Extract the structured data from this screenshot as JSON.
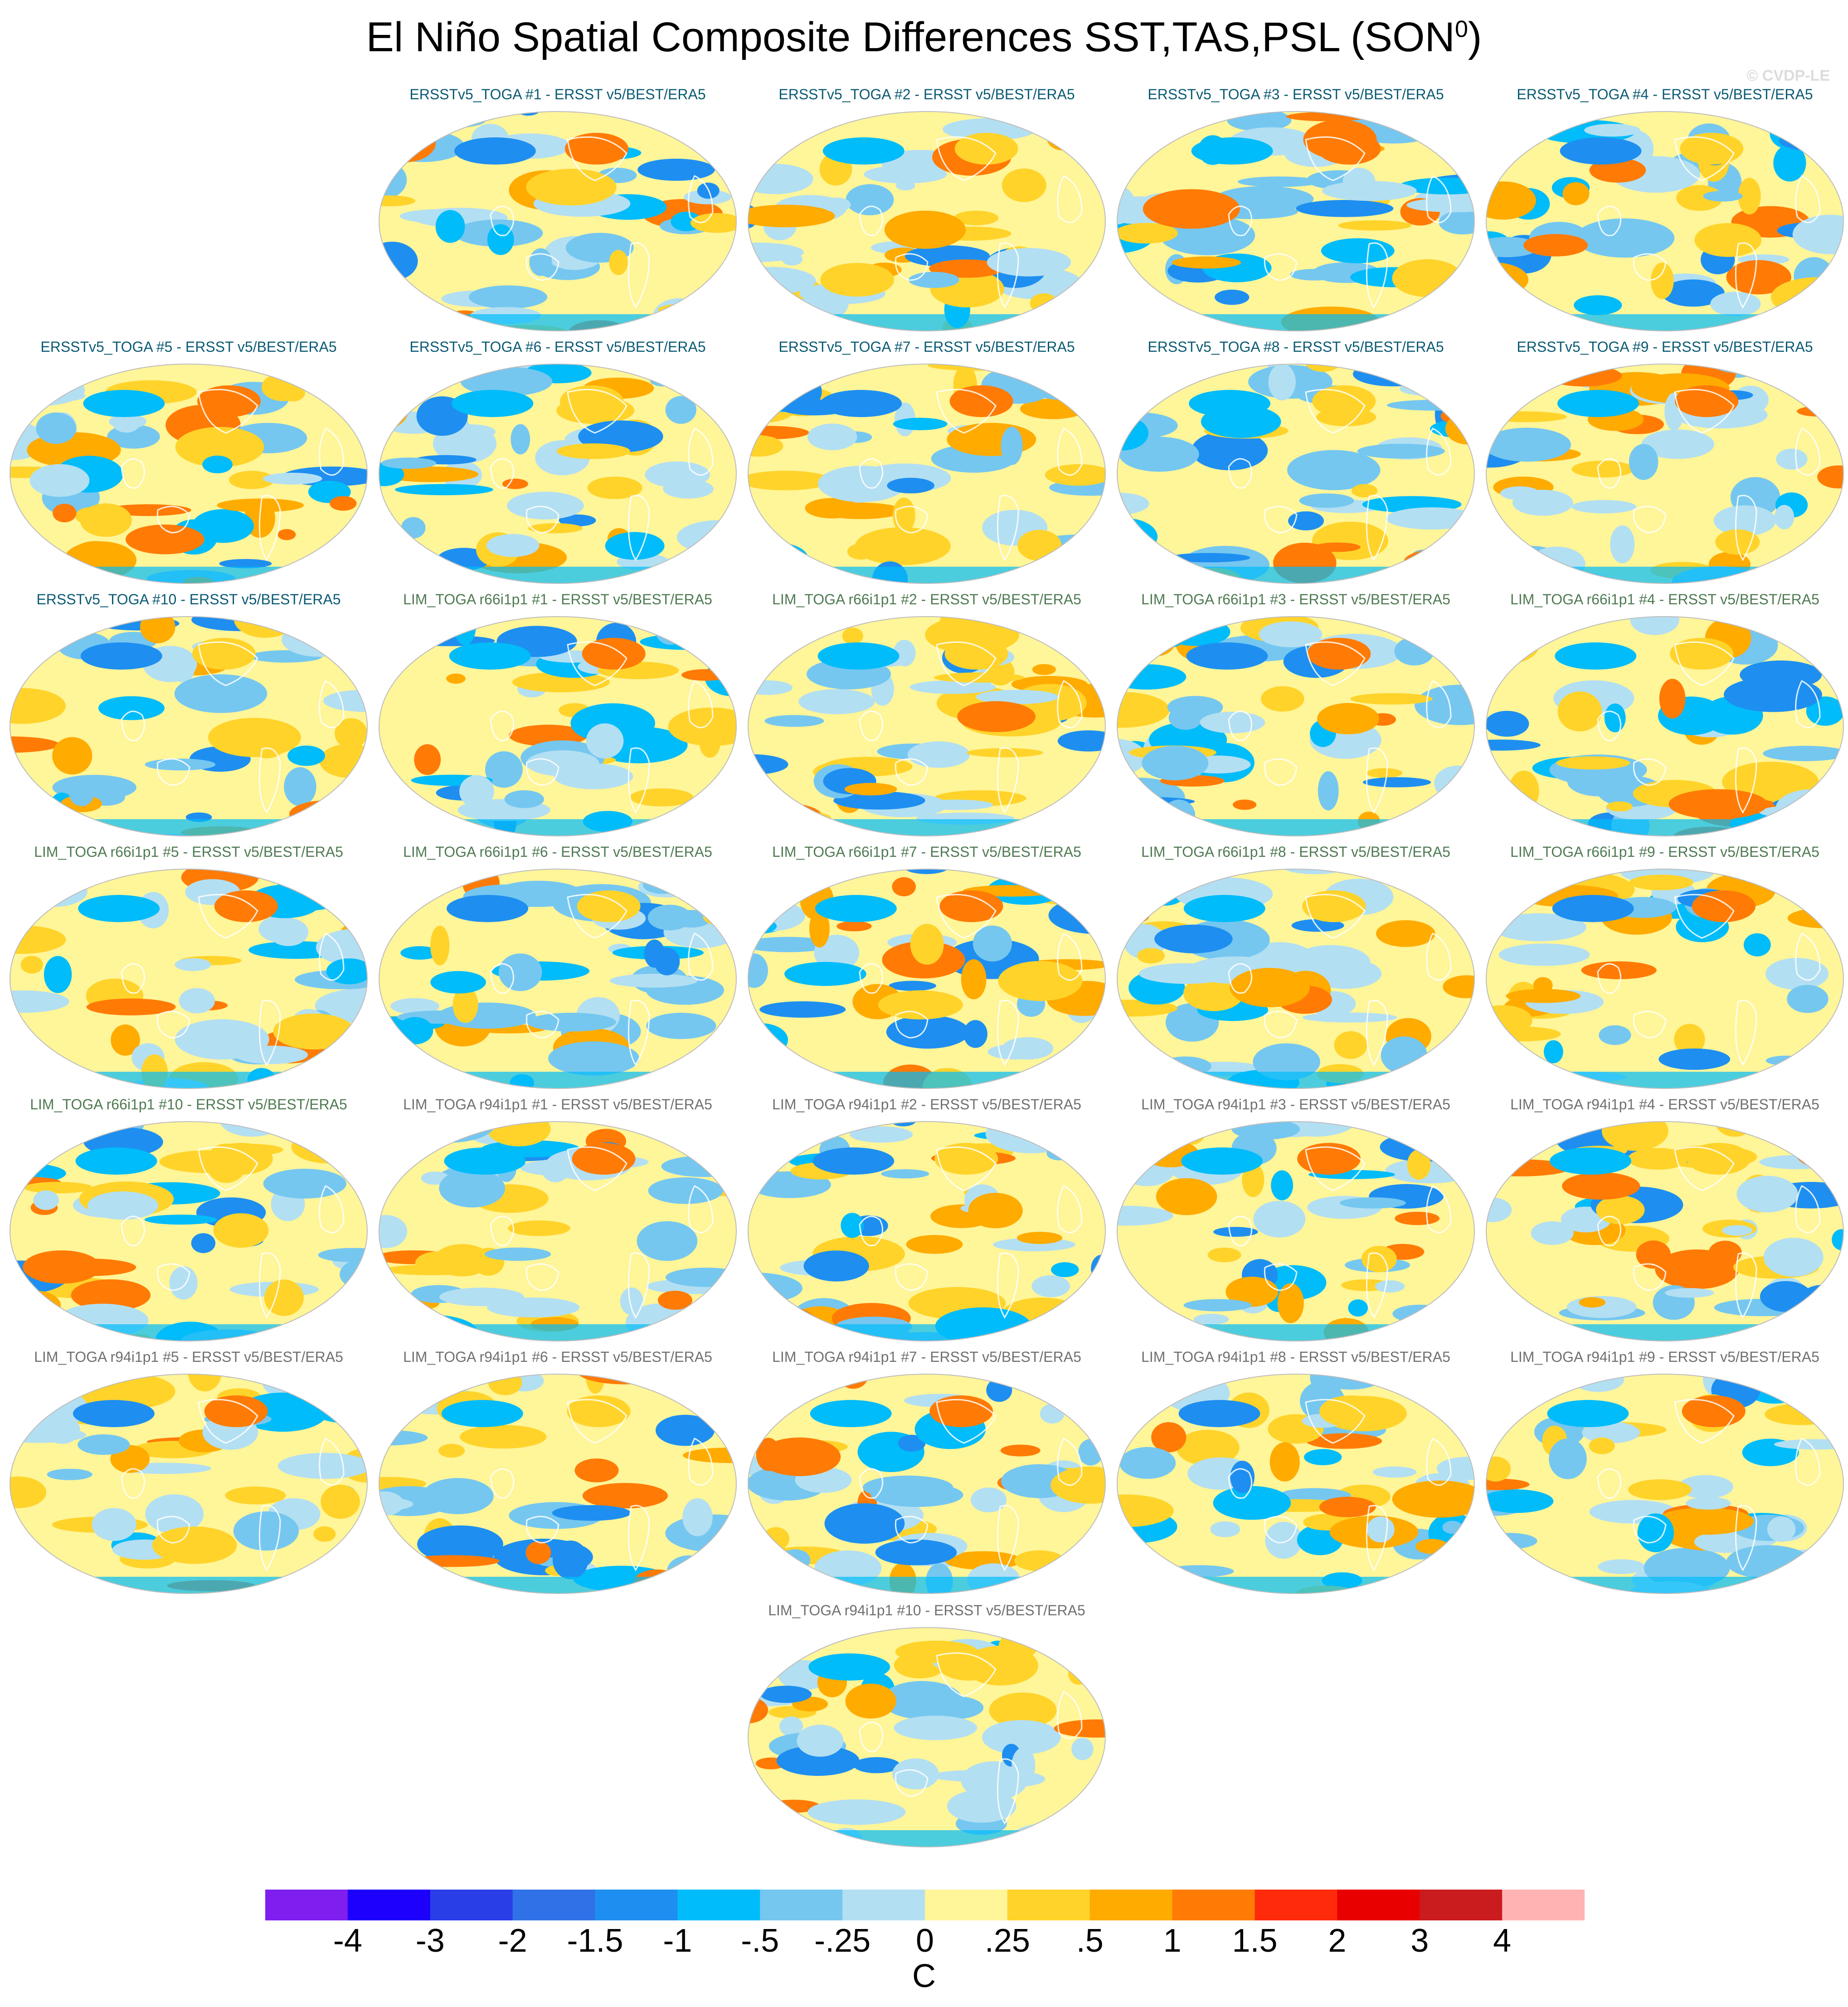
{
  "figure": {
    "title": "El Niño Spatial Composite Differences SST,TAS,PSL (SON",
    "title_superscript": "0",
    "title_close": ")",
    "watermark": "© CVDP-LE"
  },
  "chart_data": {
    "type": "heatmap",
    "title": "El Niño Spatial Composite Differences SST,TAS,PSL (SON0)",
    "units": "C",
    "colorbar": {
      "ticks": [
        "-4",
        "-3",
        "-2",
        "-1.5",
        "-1",
        "-.5",
        "-.25",
        "0",
        ".25",
        ".5",
        "1",
        "1.5",
        "2",
        "3",
        "4"
      ],
      "colors": [
        "#7e1ff0",
        "#1c00fb",
        "#2a3ee8",
        "#3171e8",
        "#1e8ff0",
        "#00bcfa",
        "#75c7f0",
        "#b3dff2",
        "#fff599",
        "#ffd32a",
        "#ffab00",
        "#ff7b06",
        "#ff2a0b",
        "#e80000",
        "#ca1b1e",
        "#ffb3b3"
      ]
    },
    "panels": [
      {
        "title": "ERSSTv5_TOGA #1 - ERSST v5/BEST/ERA5",
        "group": "ersst"
      },
      {
        "title": "ERSSTv5_TOGA #2 - ERSST v5/BEST/ERA5",
        "group": "ersst"
      },
      {
        "title": "ERSSTv5_TOGA #3 - ERSST v5/BEST/ERA5",
        "group": "ersst"
      },
      {
        "title": "ERSSTv5_TOGA #4 - ERSST v5/BEST/ERA5",
        "group": "ersst"
      },
      {
        "title": "ERSSTv5_TOGA #5 - ERSST v5/BEST/ERA5",
        "group": "ersst"
      },
      {
        "title": "ERSSTv5_TOGA #6 - ERSST v5/BEST/ERA5",
        "group": "ersst"
      },
      {
        "title": "ERSSTv5_TOGA #7 - ERSST v5/BEST/ERA5",
        "group": "ersst"
      },
      {
        "title": "ERSSTv5_TOGA #8 - ERSST v5/BEST/ERA5",
        "group": "ersst"
      },
      {
        "title": "ERSSTv5_TOGA #9 - ERSST v5/BEST/ERA5",
        "group": "ersst"
      },
      {
        "title": "ERSSTv5_TOGA #10 - ERSST v5/BEST/ERA5",
        "group": "ersst"
      },
      {
        "title": "LIM_TOGA r66i1p1 #1 - ERSST v5/BEST/ERA5",
        "group": "r66"
      },
      {
        "title": "LIM_TOGA r66i1p1 #2 - ERSST v5/BEST/ERA5",
        "group": "r66"
      },
      {
        "title": "LIM_TOGA r66i1p1 #3 - ERSST v5/BEST/ERA5",
        "group": "r66"
      },
      {
        "title": "LIM_TOGA r66i1p1 #4 - ERSST v5/BEST/ERA5",
        "group": "r66"
      },
      {
        "title": "LIM_TOGA r66i1p1 #5 - ERSST v5/BEST/ERA5",
        "group": "r66"
      },
      {
        "title": "LIM_TOGA r66i1p1 #6 - ERSST v5/BEST/ERA5",
        "group": "r66"
      },
      {
        "title": "LIM_TOGA r66i1p1 #7 - ERSST v5/BEST/ERA5",
        "group": "r66"
      },
      {
        "title": "LIM_TOGA r66i1p1 #8 - ERSST v5/BEST/ERA5",
        "group": "r66"
      },
      {
        "title": "LIM_TOGA r66i1p1 #9 - ERSST v5/BEST/ERA5",
        "group": "r66"
      },
      {
        "title": "LIM_TOGA r66i1p1 #10 - ERSST v5/BEST/ERA5",
        "group": "r66"
      },
      {
        "title": "LIM_TOGA r94i1p1 #1 - ERSST v5/BEST/ERA5",
        "group": "r94"
      },
      {
        "title": "LIM_TOGA r94i1p1 #2 - ERSST v5/BEST/ERA5",
        "group": "r94"
      },
      {
        "title": "LIM_TOGA r94i1p1 #3 - ERSST v5/BEST/ERA5",
        "group": "r94"
      },
      {
        "title": "LIM_TOGA r94i1p1 #4 - ERSST v5/BEST/ERA5",
        "group": "r94"
      },
      {
        "title": "LIM_TOGA r94i1p1 #5 - ERSST v5/BEST/ERA5",
        "group": "r94"
      },
      {
        "title": "LIM_TOGA r94i1p1 #6 - ERSST v5/BEST/ERA5",
        "group": "r94"
      },
      {
        "title": "LIM_TOGA r94i1p1 #7 - ERSST v5/BEST/ERA5",
        "group": "r94"
      },
      {
        "title": "LIM_TOGA r94i1p1 #8 - ERSST v5/BEST/ERA5",
        "group": "r94"
      },
      {
        "title": "LIM_TOGA r94i1p1 #9 - ERSST v5/BEST/ERA5",
        "group": "r94"
      },
      {
        "title": "LIM_TOGA r94i1p1 #10 - ERSST v5/BEST/ERA5",
        "group": "r94"
      }
    ],
    "group_title_colors": {
      "ersst": "#0b5a73",
      "r66": "#4f7a52",
      "r94": "#707070"
    }
  }
}
